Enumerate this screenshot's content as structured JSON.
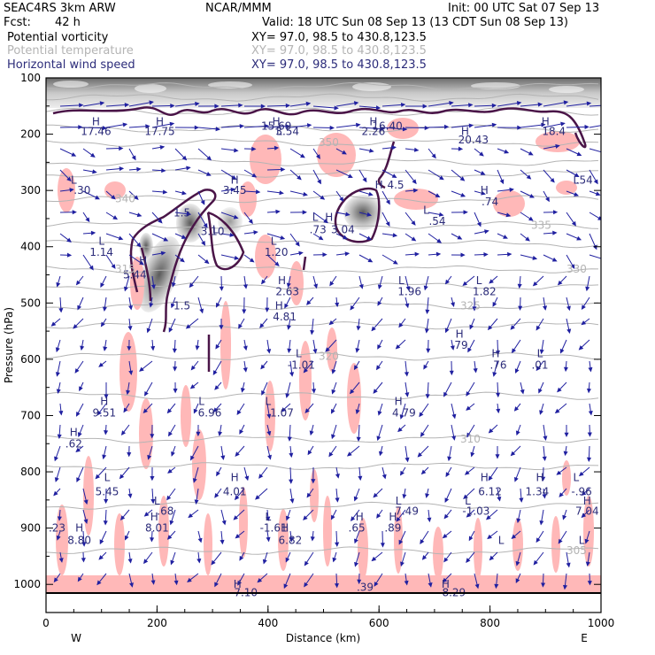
{
  "header": {
    "model": "SEAC4RS  3km ARW",
    "org": "NCAR/MMM",
    "init": "Init: 00 UTC Sat 07 Sep 13",
    "fcst_label": "Fcst:",
    "fcst_value": "42 h",
    "valid": "Valid: 18 UTC Sun 08 Sep 13 (13 CDT Sun 08 Sep 13)",
    "fields": [
      {
        "label": "Potential vorticity",
        "xy": "XY=  97.0, 98.5 to 430.8,123.5",
        "color": "#000000"
      },
      {
        "label": "Potential temperature",
        "xy": "XY=  97.0, 98.5 to 430.8,123.5",
        "color": "#b4b4b4"
      },
      {
        "label": "Horizontal wind speed",
        "xy": "XY=  97.0, 98.5 to 430.8,123.5",
        "color": "#2c2c7a"
      }
    ]
  },
  "chart_data": {
    "type": "cross-section",
    "xlabel": "Distance (km)",
    "ylabel": "Pressure (hPa)",
    "xlim": [
      0,
      1000
    ],
    "ylim": [
      1050,
      100
    ],
    "xticks": [
      "0",
      "200",
      "400",
      "600",
      "800",
      "1000"
    ],
    "yticks": [
      "100",
      "200",
      "300",
      "400",
      "500",
      "600",
      "700",
      "800",
      "900",
      "1000"
    ],
    "left_end": "W",
    "right_end": "E",
    "colors": {
      "pv_contour": "#4a1548",
      "theta": "#b4b4b4",
      "wind": "#2020a0",
      "highlight": "#ffb8b8"
    },
    "theta_contours": [
      {
        "value": "315",
        "p": 440
      },
      {
        "value": "320",
        "p": 595
      },
      {
        "value": "325",
        "p": 505
      },
      {
        "value": "330",
        "p": 440
      },
      {
        "value": "335",
        "p": 362
      },
      {
        "value": "340",
        "p": 315
      },
      {
        "value": "350",
        "p": 215
      },
      {
        "value": "310",
        "p": 742
      },
      {
        "value": "305",
        "p": 940
      }
    ],
    "hl_labels": [
      {
        "t": "H",
        "x": 90,
        "p": 178
      },
      {
        "t": "17.46",
        "x": 90,
        "p": 195
      },
      {
        "t": "H",
        "x": 205,
        "p": 178
      },
      {
        "t": "17.75",
        "x": 205,
        "p": 195
      },
      {
        "t": "H",
        "x": 415,
        "p": 178
      },
      {
        "t": "15.69",
        "x": 415,
        "p": 186
      },
      {
        "t": "L",
        "x": 420,
        "p": 195
      },
      {
        "t": "3.54",
        "x": 435,
        "p": 195
      },
      {
        "t": "H",
        "x": 590,
        "p": 178
      },
      {
        "t": "16.40",
        "x": 615,
        "p": 186
      },
      {
        "t": "2.26",
        "x": 590,
        "p": 195
      },
      {
        "t": "H",
        "x": 755,
        "p": 195
      },
      {
        "t": "20.43",
        "x": 770,
        "p": 210
      },
      {
        "t": "H",
        "x": 900,
        "p": 178
      },
      {
        "t": "18.4",
        "x": 915,
        "p": 195
      },
      {
        "t": "L",
        "x": 50,
        "p": 282
      },
      {
        "t": ".30",
        "x": 65,
        "p": 300
      },
      {
        "t": "H",
        "x": 340,
        "p": 282
      },
      {
        "t": "3.45",
        "x": 340,
        "p": 300
      },
      {
        "t": "H",
        "x": 600,
        "p": 290
      },
      {
        "t": "4.5",
        "x": 630,
        "p": 290
      },
      {
        "t": "L",
        "x": 685,
        "p": 335
      },
      {
        "t": ".54",
        "x": 705,
        "p": 355
      },
      {
        "t": "H",
        "x": 790,
        "p": 300
      },
      {
        "t": ".74",
        "x": 800,
        "p": 320
      },
      {
        "t": "L",
        "x": 955,
        "p": 282
      },
      {
        "t": ".54",
        "x": 970,
        "p": 282
      },
      {
        "t": "1.5",
        "x": 245,
        "p": 340
      },
      {
        "t": "L",
        "x": 485,
        "p": 348
      },
      {
        "t": "H",
        "x": 510,
        "p": 348
      },
      {
        "t": ".73",
        "x": 490,
        "p": 370
      },
      {
        "t": "3.04",
        "x": 535,
        "p": 370
      },
      {
        "t": "L",
        "x": 100,
        "p": 390
      },
      {
        "t": "1.14",
        "x": 100,
        "p": 410
      },
      {
        "t": "L",
        "x": 305,
        "p": 370
      },
      {
        "t": "3.10",
        "x": 300,
        "p": 373
      },
      {
        "t": "L",
        "x": 410,
        "p": 390
      },
      {
        "t": "1.20",
        "x": 415,
        "p": 410
      },
      {
        "t": "H",
        "x": 175,
        "p": 425
      },
      {
        "t": "5.44",
        "x": 160,
        "p": 450
      },
      {
        "t": "H",
        "x": 425,
        "p": 460
      },
      {
        "t": "2.63",
        "x": 435,
        "p": 480
      },
      {
        "t": "L",
        "x": 640,
        "p": 460
      },
      {
        "t": "1.96",
        "x": 655,
        "p": 480
      },
      {
        "t": "L",
        "x": 780,
        "p": 460
      },
      {
        "t": "1.82",
        "x": 790,
        "p": 480
      },
      {
        "t": "1.5",
        "x": 245,
        "p": 505
      },
      {
        "t": "H",
        "x": 420,
        "p": 505
      },
      {
        "t": "4.81",
        "x": 430,
        "p": 525
      },
      {
        "t": "H",
        "x": 745,
        "p": 555
      },
      {
        "t": ".79",
        "x": 745,
        "p": 575
      },
      {
        "t": "L",
        "x": 455,
        "p": 590
      },
      {
        "t": "-1.01",
        "x": 460,
        "p": 610
      },
      {
        "t": "H",
        "x": 810,
        "p": 590
      },
      {
        "t": ".76",
        "x": 815,
        "p": 610
      },
      {
        "t": "L",
        "x": 890,
        "p": 590
      },
      {
        "t": ".01",
        "x": 890,
        "p": 610
      },
      {
        "t": "H",
        "x": 105,
        "p": 675
      },
      {
        "t": "9.51",
        "x": 105,
        "p": 695
      },
      {
        "t": "L",
        "x": 280,
        "p": 675
      },
      {
        "t": "6.96",
        "x": 295,
        "p": 695
      },
      {
        "t": "L",
        "x": 400,
        "p": 675
      },
      {
        "t": "1.07",
        "x": 425,
        "p": 695
      },
      {
        "t": "H",
        "x": 635,
        "p": 675
      },
      {
        "t": "4.79",
        "x": 645,
        "p": 695
      },
      {
        "t": "H",
        "x": 50,
        "p": 730
      },
      {
        "t": ".62",
        "x": 50,
        "p": 750
      },
      {
        "t": "L",
        "x": 110,
        "p": 810
      },
      {
        "t": "5.45",
        "x": 110,
        "p": 835
      },
      {
        "t": "H",
        "x": 340,
        "p": 810
      },
      {
        "t": "4.01",
        "x": 340,
        "p": 835
      },
      {
        "t": "H",
        "x": 790,
        "p": 810
      },
      {
        "t": "6.12",
        "x": 800,
        "p": 835
      },
      {
        "t": "H",
        "x": 890,
        "p": 810
      },
      {
        "t": "1.34",
        "x": 885,
        "p": 835
      },
      {
        "t": "L",
        "x": 955,
        "p": 810
      },
      {
        "t": "-.96",
        "x": 965,
        "p": 835
      },
      {
        "t": "L",
        "x": 200,
        "p": 852
      },
      {
        "t": ".68",
        "x": 215,
        "p": 870
      },
      {
        "t": "L",
        "x": 635,
        "p": 852
      },
      {
        "t": "7.49",
        "x": 650,
        "p": 870
      },
      {
        "t": "L",
        "x": 760,
        "p": 852
      },
      {
        "t": "-1.03",
        "x": 775,
        "p": 870
      },
      {
        "t": "H",
        "x": 975,
        "p": 852
      },
      {
        "t": "7.04",
        "x": 975,
        "p": 870
      },
      {
        "t": "H",
        "x": 195,
        "p": 880
      },
      {
        "t": "8.01",
        "x": 200,
        "p": 900
      },
      {
        "t": "L",
        "x": 400,
        "p": 880
      },
      {
        "t": "-1.61",
        "x": 410,
        "p": 900
      },
      {
        "t": "H",
        "x": 565,
        "p": 880
      },
      {
        "t": ".65",
        "x": 560,
        "p": 900
      },
      {
        "t": "H",
        "x": 625,
        "p": 880
      },
      {
        "t": ".89",
        "x": 625,
        "p": 900
      },
      {
        "t": ".23",
        "x": 20,
        "p": 900
      },
      {
        "t": "H",
        "x": 430,
        "p": 900
      },
      {
        "t": "6.82",
        "x": 440,
        "p": 922
      },
      {
        "t": "H",
        "x": 60,
        "p": 900
      },
      {
        "t": "8.80",
        "x": 60,
        "p": 922
      },
      {
        "t": "L",
        "x": 820,
        "p": 922
      },
      {
        "t": "L",
        "x": 965,
        "p": 922
      },
      {
        "t": "H",
        "x": 345,
        "p": 1000
      },
      {
        "t": "7.10",
        "x": 360,
        "p": 1015
      },
      {
        "t": ".39",
        "x": 575,
        "p": 1005
      },
      {
        "t": "H",
        "x": 720,
        "p": 1000
      },
      {
        "t": "8.29",
        "x": 735,
        "p": 1015
      }
    ]
  }
}
